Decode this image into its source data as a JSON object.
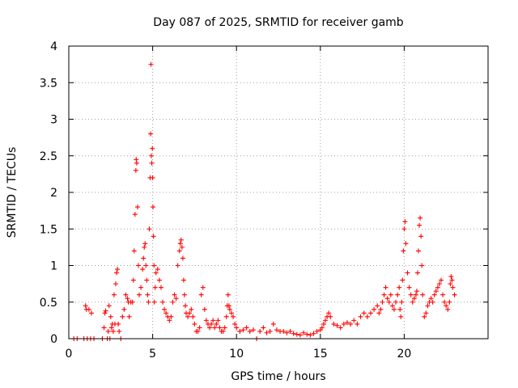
{
  "chart_data": {
    "type": "scatter",
    "title": "Day 087 of 2025, SRMTID for receiver gamb",
    "xlabel": "GPS time / hours",
    "ylabel": "SRMTID / TECUs",
    "xlim": [
      0,
      25
    ],
    "ylim": [
      0,
      4
    ],
    "x_ticks": [
      0,
      5,
      10,
      15,
      20
    ],
    "y_ticks": [
      0,
      0.5,
      1,
      1.5,
      2,
      2.5,
      3,
      3.5,
      4
    ],
    "x_tick_labels": [
      "0",
      "5",
      "10",
      "15",
      "20"
    ],
    "y_tick_labels": [
      "0",
      "0.5",
      "1",
      "1.5",
      "2",
      "2.5",
      "3",
      "3.5",
      "4"
    ],
    "grid": true,
    "marker": "+",
    "color": "#ff0000",
    "series": [
      {
        "name": "SRMTID",
        "x": [
          0.3,
          0.5,
          0.9,
          1.0,
          1.05,
          1.1,
          1.2,
          1.3,
          1.35,
          1.5,
          2.0,
          2.1,
          2.15,
          2.2,
          2.3,
          2.35,
          2.4,
          2.45,
          2.5,
          2.55,
          2.6,
          2.65,
          2.7,
          2.75,
          2.8,
          2.85,
          2.9,
          2.95,
          3.0,
          3.1,
          3.2,
          3.3,
          3.4,
          3.5,
          3.55,
          3.6,
          3.7,
          3.8,
          3.85,
          3.9,
          3.95,
          4.0,
          4.02,
          4.05,
          4.1,
          4.15,
          4.2,
          4.3,
          4.4,
          4.45,
          4.5,
          4.55,
          4.6,
          4.65,
          4.7,
          4.75,
          4.8,
          4.85,
          4.88,
          4.9,
          4.92,
          4.95,
          4.98,
          5.0,
          5.02,
          5.05,
          5.08,
          5.1,
          5.15,
          5.2,
          5.3,
          5.4,
          5.5,
          5.6,
          5.7,
          5.8,
          5.9,
          6.0,
          6.1,
          6.2,
          6.3,
          6.4,
          6.5,
          6.6,
          6.65,
          6.7,
          6.75,
          6.8,
          6.85,
          6.9,
          6.95,
          7.0,
          7.1,
          7.2,
          7.3,
          7.4,
          7.5,
          7.6,
          7.7,
          7.8,
          7.9,
          8.0,
          8.1,
          8.2,
          8.3,
          8.4,
          8.5,
          8.6,
          8.7,
          8.8,
          8.9,
          9.0,
          9.1,
          9.2,
          9.3,
          9.4,
          9.45,
          9.5,
          9.55,
          9.6,
          9.7,
          9.8,
          9.9,
          10.0,
          10.2,
          10.4,
          10.6,
          10.8,
          11.0,
          11.2,
          11.4,
          11.6,
          11.8,
          12.0,
          12.2,
          12.4,
          12.6,
          12.8,
          13.0,
          13.2,
          13.4,
          13.6,
          13.8,
          14.0,
          14.2,
          14.4,
          14.6,
          14.8,
          15.0,
          15.1,
          15.2,
          15.3,
          15.4,
          15.5,
          15.6,
          15.8,
          16.0,
          16.2,
          16.4,
          16.6,
          16.8,
          17.0,
          17.2,
          17.4,
          17.6,
          17.8,
          18.0,
          18.2,
          18.4,
          18.5,
          18.6,
          18.7,
          18.8,
          18.9,
          19.0,
          19.1,
          19.2,
          19.3,
          19.4,
          19.5,
          19.6,
          19.7,
          19.75,
          19.8,
          19.85,
          19.9,
          19.95,
          20.0,
          20.05,
          20.1,
          20.2,
          20.3,
          20.4,
          20.5,
          20.6,
          20.7,
          20.75,
          20.8,
          20.85,
          20.9,
          20.95,
          21.0,
          21.05,
          21.1,
          21.2,
          21.3,
          21.4,
          21.5,
          21.6,
          21.7,
          21.8,
          21.9,
          22.0,
          22.1,
          22.2,
          22.3,
          22.4,
          22.5,
          22.6,
          22.7,
          22.75,
          22.8,
          22.85,
          22.9,
          23.0
        ],
        "y": [
          0,
          0,
          0,
          0.45,
          0.4,
          0,
          0.4,
          0,
          0.35,
          0,
          0,
          0.15,
          0.35,
          0.38,
          0,
          0.1,
          0.45,
          0,
          0.3,
          0.15,
          0.2,
          0.1,
          0.6,
          0.2,
          0.75,
          0.9,
          0.95,
          0.2,
          0.1,
          0,
          0.3,
          0.4,
          0.6,
          0.55,
          0.5,
          0.3,
          0.5,
          0.5,
          0.8,
          1.2,
          1.7,
          2.3,
          2.45,
          2.4,
          1.8,
          1.0,
          0.6,
          0.7,
          0.95,
          1.1,
          1.25,
          1.3,
          1.0,
          0.8,
          0.6,
          0.5,
          1.5,
          2.2,
          2.8,
          3.75,
          2.5,
          2.4,
          2.6,
          2.2,
          1.8,
          1.4,
          1.0,
          0.5,
          0.7,
          0.9,
          0.95,
          0.8,
          0.7,
          0.5,
          0.4,
          0.35,
          0.3,
          0.25,
          0.3,
          0.5,
          0.6,
          0.55,
          1.0,
          1.2,
          1.3,
          1.35,
          1.25,
          1.1,
          0.8,
          0.6,
          0.45,
          0.35,
          0.3,
          0.35,
          0.4,
          0.3,
          0.2,
          0.1,
          0.1,
          0.15,
          0.6,
          0.7,
          0.4,
          0.25,
          0.2,
          0.15,
          0.2,
          0.25,
          0.15,
          0.2,
          0.25,
          0.15,
          0.1,
          0.1,
          0.15,
          0.3,
          0.45,
          0.6,
          0.45,
          0.4,
          0.35,
          0.3,
          0.2,
          0.15,
          0.1,
          0.12,
          0.15,
          0.1,
          0.12,
          0,
          0.1,
          0.15,
          0.08,
          0.1,
          0.2,
          0.12,
          0.1,
          0.1,
          0.08,
          0.1,
          0.07,
          0.06,
          0.05,
          0.08,
          0.06,
          0.05,
          0.07,
          0.1,
          0.12,
          0.15,
          0.2,
          0.25,
          0.3,
          0.35,
          0.3,
          0.2,
          0.18,
          0.15,
          0.2,
          0.22,
          0.2,
          0.25,
          0.2,
          0.3,
          0.35,
          0.3,
          0.35,
          0.4,
          0.45,
          0.35,
          0.4,
          0.5,
          0.6,
          0.7,
          0.55,
          0.5,
          0.6,
          0.45,
          0.4,
          0.5,
          0.6,
          0.7,
          0.4,
          0.3,
          0.5,
          0.8,
          1.2,
          1.5,
          1.6,
          1.3,
          0.9,
          0.7,
          0.6,
          0.5,
          0.55,
          0.6,
          0.65,
          0.9,
          1.2,
          1.55,
          1.65,
          1.4,
          1.0,
          0.6,
          0.3,
          0.35,
          0.45,
          0.5,
          0.55,
          0.5,
          0.6,
          0.65,
          0.7,
          0.75,
          0.8,
          0.6,
          0.5,
          0.45,
          0.4,
          0.5,
          0.75,
          0.85,
          0.8,
          0.7,
          0.6
        ]
      }
    ]
  }
}
